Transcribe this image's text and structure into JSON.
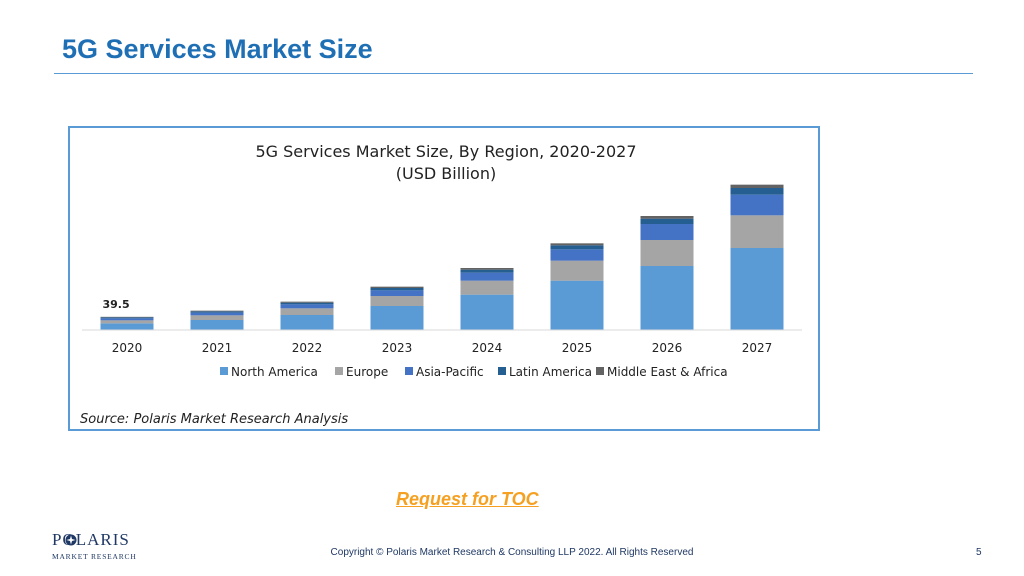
{
  "slide": {
    "title": "5G Services Market Size",
    "toc_link": "Request for TOC",
    "copyright": "Copyright © Polaris Market Research & Consulting LLP 2022. All Rights Reserved",
    "page_number": "5",
    "logo_top": "POLARIS",
    "logo_sub": "MARKET RESEARCH",
    "source": "Source: Polaris Market Research Analysis"
  },
  "colors": {
    "title": "#1f6fb5",
    "rule": "#5b9bd5",
    "link": "#f5a020"
  },
  "chart_data": {
    "type": "bar",
    "stacked": true,
    "title": "5G Services Market Size, By Region, 2020-2027",
    "subtitle": "(USD Billion)",
    "categories": [
      "2020",
      "2021",
      "2022",
      "2023",
      "2024",
      "2025",
      "2026",
      "2027"
    ],
    "series": [
      {
        "name": "North America",
        "color": "#5b9bd5",
        "values": [
          20,
          30,
          45,
          72,
          106,
          148,
          192,
          246
        ]
      },
      {
        "name": "Europe",
        "color": "#a5a5a5",
        "values": [
          9,
          14,
          20,
          30,
          42,
          60,
          78,
          98
        ]
      },
      {
        "name": "Asia-Pacific",
        "color": "#4472c4",
        "values": [
          6,
          8,
          12,
          17,
          24,
          34,
          48,
          62
        ]
      },
      {
        "name": "Latin America",
        "color": "#255e91",
        "values": [
          3,
          4,
          5,
          7,
          9,
          12,
          16,
          20
        ]
      },
      {
        "name": "Middle East & Africa",
        "color": "#636363",
        "values": [
          1.5,
          2,
          3,
          4,
          5,
          6,
          8,
          10
        ]
      }
    ],
    "data_labels": [
      {
        "category": "2020",
        "text": "39.5"
      }
    ],
    "ylim": [
      0,
      450
    ],
    "legend": "bottom",
    "grid": false,
    "source": "Source: Polaris Market Research Analysis"
  }
}
